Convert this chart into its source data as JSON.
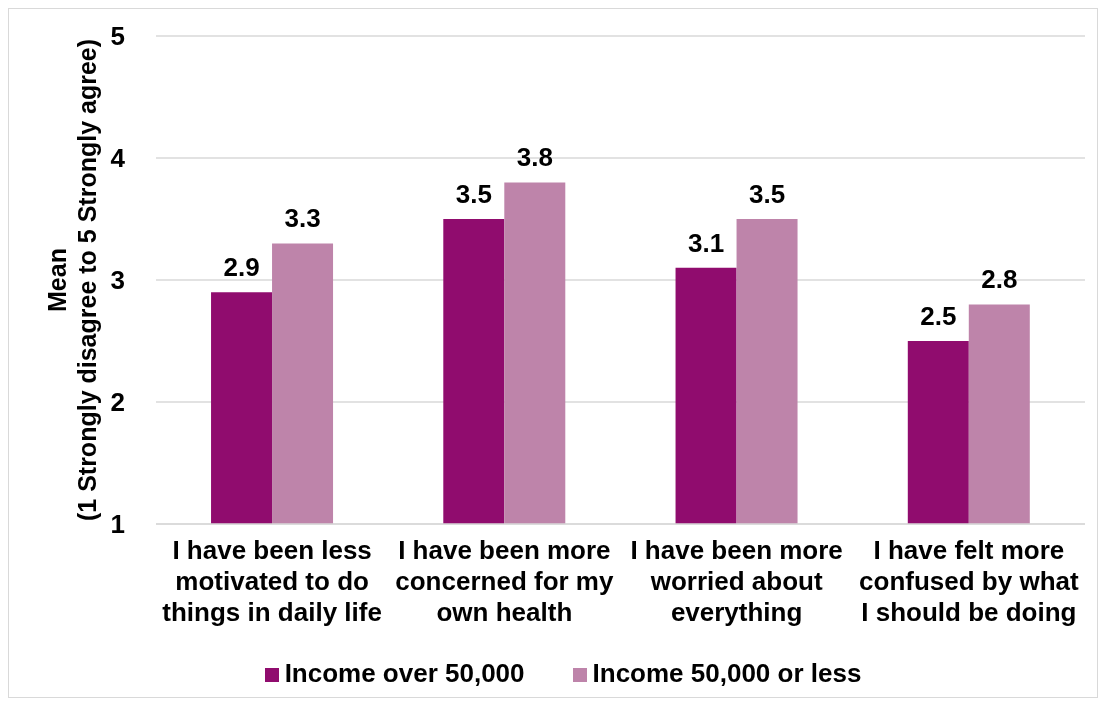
{
  "chart_data": {
    "type": "bar",
    "ylabel": "Mean\n(1 Strongly disagree to 5 Strongly agree)",
    "categories": [
      "I have been less motivated to do things in daily life",
      "I have been more concerned for my own health",
      "I have been more worried about everything",
      "I have felt more confused by what I should be doing"
    ],
    "series": [
      {
        "name": "Income over 50,000",
        "color": "#900c6e",
        "values": [
          2.9,
          3.5,
          3.1,
          2.5
        ]
      },
      {
        "name": "Income 50,000 or less",
        "color": "#be84aa",
        "values": [
          3.3,
          3.8,
          3.5,
          2.8
        ]
      }
    ],
    "ylim": [
      1,
      5
    ],
    "yticks": [
      1,
      2,
      3,
      4,
      5
    ],
    "grid": "y",
    "legend": "bottom",
    "data_labels": true
  }
}
